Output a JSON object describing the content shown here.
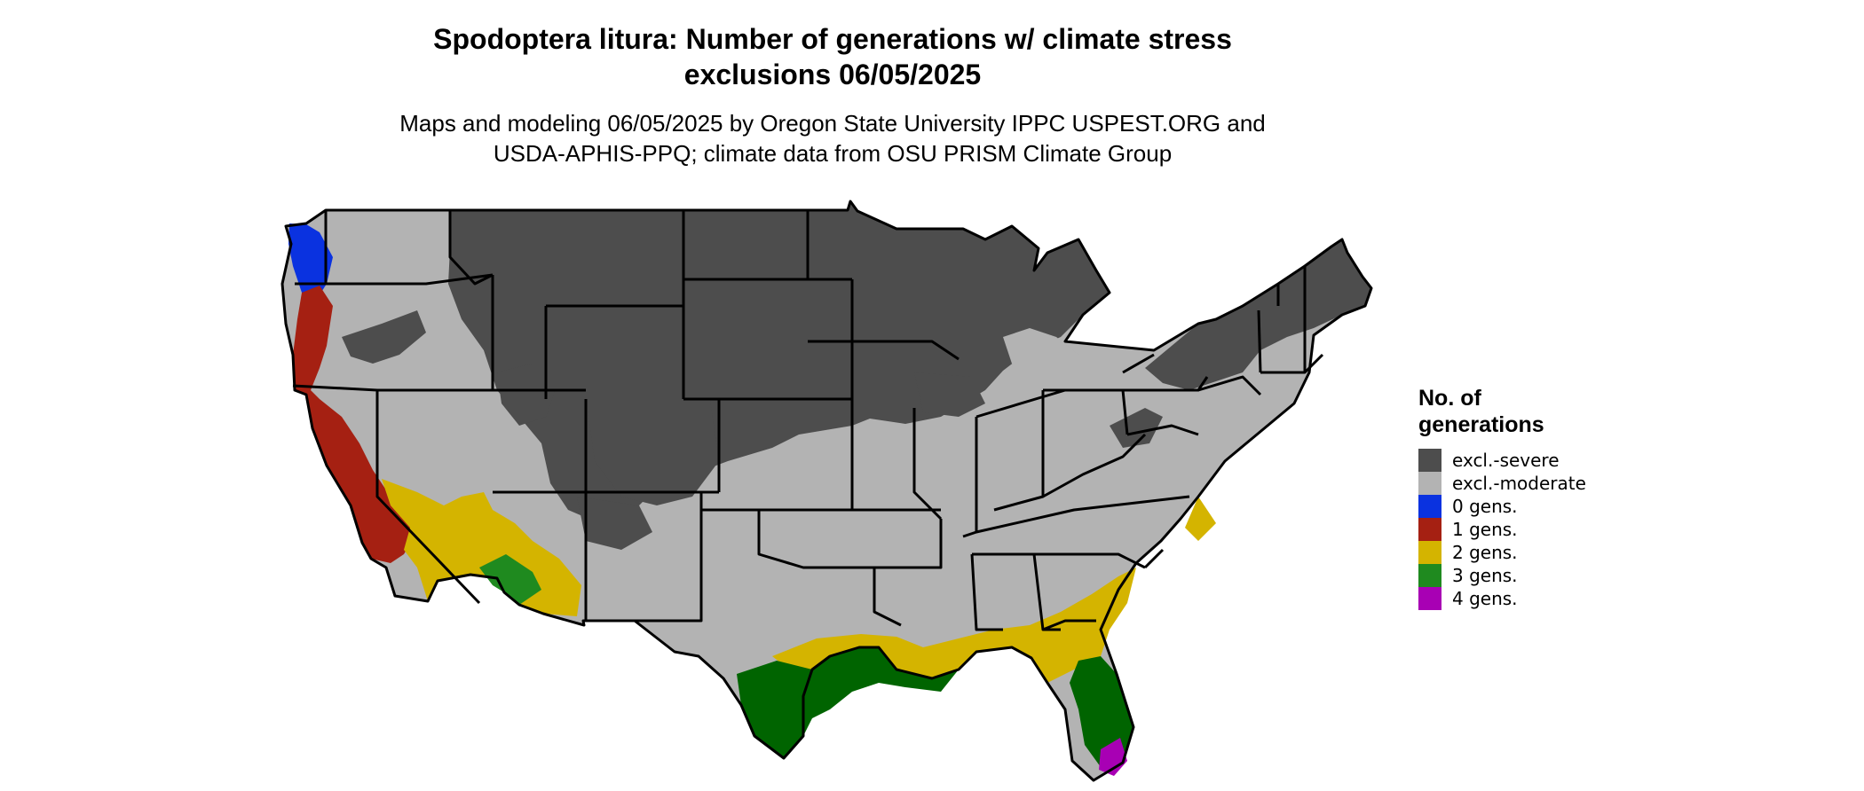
{
  "title": {
    "line1": "Spodoptera litura: Number of generations w/ climate stress",
    "line2": "exclusions 06/05/2025"
  },
  "subtitle": {
    "line1": "Maps and modeling 06/05/2025 by Oregon State University IPPC USPEST.ORG and",
    "line2": "USDA-APHIS-PPQ; climate data from OSU PRISM Climate Group"
  },
  "legend": {
    "title_line1": "No. of",
    "title_line2": "generations",
    "items": [
      {
        "label": "excl.-severe",
        "color": "#4d4d4d"
      },
      {
        "label": "excl.-moderate",
        "color": "#b3b3b3"
      },
      {
        "label": "0 gens.",
        "color": "#0a32e0"
      },
      {
        "label": "1 gens.",
        "color": "#a52012"
      },
      {
        "label": "2 gens.",
        "color": "#d4b400"
      },
      {
        "label": "3 gens.",
        "color": "#1f8a1f"
      },
      {
        "label": "4 gens.",
        "color": "#a800b4"
      }
    ]
  }
}
